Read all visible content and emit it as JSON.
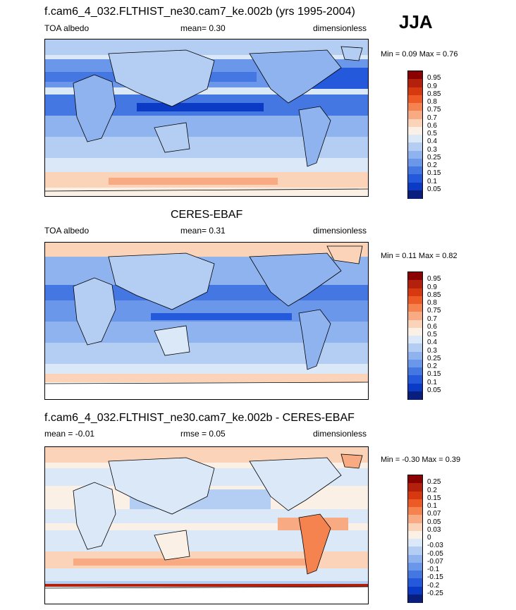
{
  "season": "JJA",
  "colors": {
    "land": "#ffffff",
    "coast": "#000000"
  },
  "panels": [
    {
      "id": "model",
      "title": "f.cam6_4_032.FLTHIST_ne30.cam7_ke.002b (yrs 1995-2004)",
      "left_label": "TOA albedo",
      "center_label": "mean=   0.30",
      "right_label": "dimensionless",
      "minmax": "Min =   0.09 Max =   0.76",
      "colorbar": {
        "labels": [
          "0.95",
          "0.9",
          "0.85",
          "0.8",
          "0.75",
          "0.7",
          "0.6",
          "0.5",
          "0.4",
          "0.3",
          "0.25",
          "0.2",
          "0.15",
          "0.1",
          "0.05"
        ],
        "colors": [
          "#8b0000",
          "#b3200b",
          "#d6380f",
          "#ed5a26",
          "#f4834f",
          "#f8ab83",
          "#fbd3b8",
          "#fbf0e6",
          "#dbe8f8",
          "#b4cdf3",
          "#8fb3ef",
          "#6a97ea",
          "#4577e3",
          "#2459dc",
          "#0b3bc4",
          "#0a1f7d"
        ]
      }
    },
    {
      "id": "obs",
      "title": "CERES-EBAF",
      "left_label": "TOA albedo",
      "center_label": "mean=   0.31",
      "right_label": "dimensionless",
      "minmax": "Min =   0.11 Max =   0.82",
      "colorbar": {
        "labels": [
          "0.95",
          "0.9",
          "0.85",
          "0.8",
          "0.75",
          "0.7",
          "0.6",
          "0.5",
          "0.4",
          "0.3",
          "0.25",
          "0.2",
          "0.15",
          "0.1",
          "0.05"
        ],
        "colors": [
          "#8b0000",
          "#b3200b",
          "#d6380f",
          "#ed5a26",
          "#f4834f",
          "#f8ab83",
          "#fbd3b8",
          "#fbf0e6",
          "#dbe8f8",
          "#b4cdf3",
          "#8fb3ef",
          "#6a97ea",
          "#4577e3",
          "#2459dc",
          "#0b3bc4",
          "#0a1f7d"
        ]
      }
    },
    {
      "id": "diff",
      "title": "f.cam6_4_032.FLTHIST_ne30.cam7_ke.002b - CERES-EBAF",
      "left_label": "mean =  -0.01",
      "center_label": "rmse =   0.05",
      "right_label": "dimensionless",
      "minmax": "Min =  -0.30 Max =   0.39",
      "colorbar": {
        "labels": [
          "0.25",
          "0.2",
          "0.15",
          "0.1",
          "0.07",
          "0.05",
          "0.03",
          "0",
          "-0.03",
          "-0.05",
          "-0.07",
          "-0.1",
          "-0.15",
          "-0.2",
          "-0.25"
        ],
        "colors": [
          "#8b0000",
          "#b3200b",
          "#d6380f",
          "#ed5a26",
          "#f4834f",
          "#f8ab83",
          "#fbd3b8",
          "#fbf0e6",
          "#dbe8f8",
          "#b4cdf3",
          "#8fb3ef",
          "#6a97ea",
          "#4577e3",
          "#2459dc",
          "#0b3bc4",
          "#0a1f7d"
        ]
      }
    }
  ]
}
